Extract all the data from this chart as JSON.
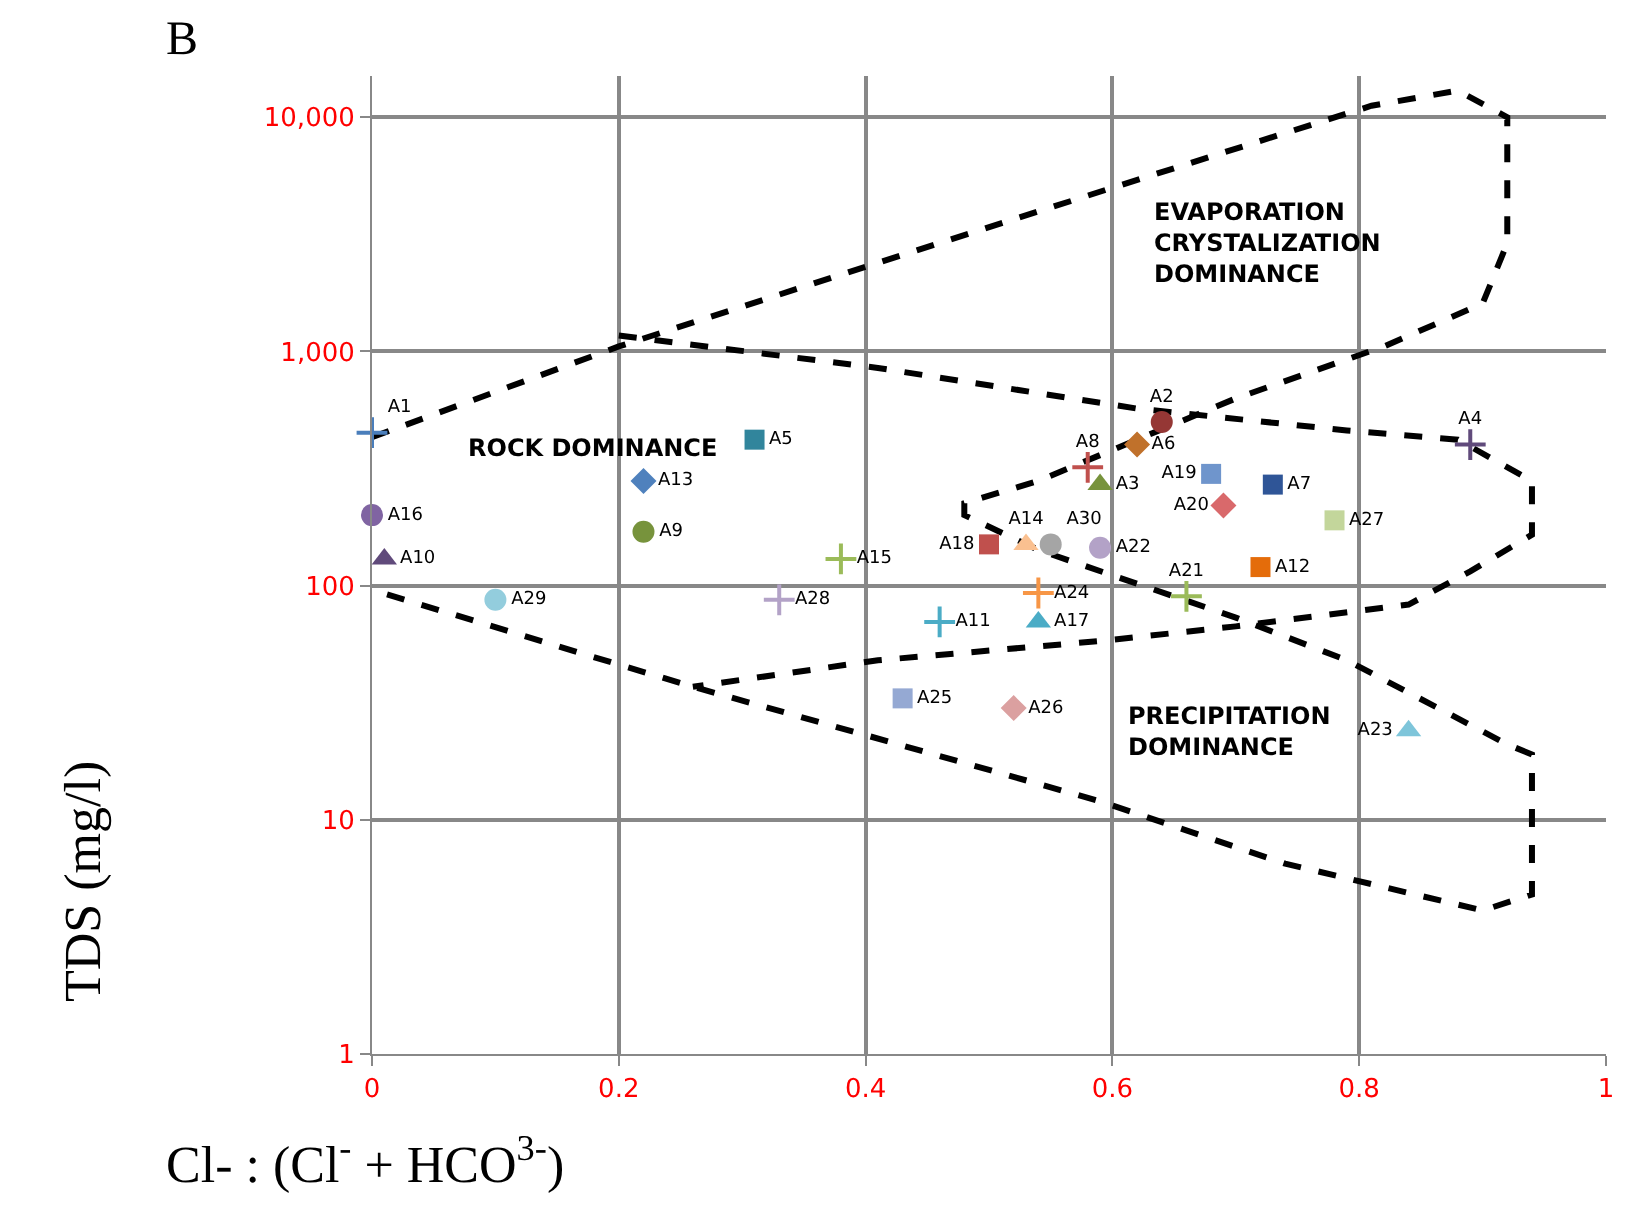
{
  "chart_data": {
    "type": "scatter",
    "title": "B",
    "xlabel": "Cl- : (Cl$^{-}$ + HCO$^{3-}$)",
    "ylabel": "TDS (mg/l)",
    "log": "y",
    "grid": true,
    "legend": false,
    "xlim": [
      0,
      1
    ],
    "xticks": [
      0,
      0.2,
      0.4,
      0.6,
      0.8,
      1
    ],
    "ylim": [
      1,
      15000
    ],
    "yticks": [
      1,
      10,
      100,
      {
        "value": 1000,
        "label": "1,000"
      },
      {
        "value": 10000,
        "label": "10,000"
      }
    ],
    "annotations": [
      "ROCK DOMINANCE",
      "EVAPORATION\nCRYSTALIZATION\nDOMINANCE",
      "PRECIPITATION\nDOMINANCE"
    ],
    "series": [
      {
        "type": "line",
        "line_style": "dashed",
        "marker": "none",
        "color": "#000000",
        "x": [
          0,
          0.2,
          0.4,
          0.6,
          0.81,
          0.88,
          0.92,
          0.92,
          0.9,
          0.82,
          0.7,
          0.54,
          0.48,
          0.48,
          0.54,
          0.7,
          0.79,
          0.92,
          0.94,
          0.94,
          0.94,
          0.9,
          0.74,
          0.59,
          0.4,
          0.26,
          0.2,
          0
        ],
        "values": [
          430,
          1050,
          2300,
          5000,
          11200,
          13000,
          10000,
          2900,
          1600,
          1050,
          630,
          280,
          225,
          200,
          142,
          73,
          48,
          21,
          19,
          8.4,
          4.8,
          4.1,
          6.5,
          12,
          23,
          37,
          46,
          96
        ]
      },
      {
        "type": "line",
        "line_style": "dashed",
        "marker": "none",
        "color": "#000000",
        "x": [
          0.2,
          0.41,
          0.62,
          0.79,
          0.88,
          0.94,
          0.94,
          0.89,
          0.84,
          0.7,
          0.59,
          0.41,
          0.26
        ],
        "values": [
          1170,
          850,
          570,
          460,
          420,
          280,
          165,
          115,
          83,
          67,
          58,
          48,
          37
        ]
      },
      {
        "name": "A1",
        "marker": "cross",
        "color": "#4a7ebb",
        "x": [
          0.0
        ],
        "values": [
          450
        ]
      },
      {
        "name": "A2",
        "marker": "circle",
        "color": "#953735",
        "x": [
          0.64
        ],
        "values": [
          500
        ]
      },
      {
        "name": "A3",
        "marker": "triangle",
        "color": "#77933c",
        "x": [
          0.59
        ],
        "values": [
          270
        ]
      },
      {
        "name": "A4",
        "marker": "cross",
        "color": "#604a7b",
        "x": [
          0.89
        ],
        "values": [
          400
        ]
      },
      {
        "name": "A5",
        "marker": "square",
        "color": "#31859c",
        "x": [
          0.31
        ],
        "values": [
          420
        ]
      },
      {
        "name": "A6",
        "marker": "diamond",
        "color": "#c0712b",
        "x": [
          0.62
        ],
        "values": [
          400
        ]
      },
      {
        "name": "A7",
        "marker": "square",
        "color": "#2f5597",
        "x": [
          0.73
        ],
        "values": [
          270
        ]
      },
      {
        "name": "A8",
        "marker": "cross",
        "color": "#c0504d",
        "x": [
          0.58
        ],
        "values": [
          320
        ]
      },
      {
        "name": "A9",
        "marker": "circle",
        "color": "#77933c",
        "x": [
          0.22
        ],
        "values": [
          170
        ]
      },
      {
        "name": "A10",
        "marker": "triangle",
        "color": "#604a7b",
        "x": [
          0.01
        ],
        "values": [
          130
        ]
      },
      {
        "name": "A11",
        "marker": "cross",
        "color": "#4bacc6",
        "x": [
          0.46
        ],
        "values": [
          70
        ]
      },
      {
        "name": "A12",
        "marker": "square",
        "color": "#e46c0a",
        "x": [
          0.72
        ],
        "values": [
          120
        ]
      },
      {
        "name": "A13",
        "marker": "diamond",
        "color": "#4f81bd",
        "x": [
          0.22
        ],
        "values": [
          280
        ]
      },
      {
        "name": "A14",
        "marker": "triangle",
        "color": "#fac090",
        "x": [
          0.53
        ],
        "values": [
          150
        ]
      },
      {
        "name": "A15",
        "marker": "cross",
        "color": "#9bbb59",
        "x": [
          0.38
        ],
        "values": [
          130
        ]
      },
      {
        "name": "A16",
        "marker": "circle",
        "color": "#8064a2",
        "x": [
          0.0
        ],
        "values": [
          200
        ]
      },
      {
        "name": "A17",
        "marker": "triangle",
        "color": "#4bacc6",
        "x": [
          0.54
        ],
        "values": [
          70
        ]
      },
      {
        "name": "A18",
        "marker": "square",
        "color": "#c0504d",
        "x": [
          0.5
        ],
        "values": [
          150
        ]
      },
      {
        "name": "A19",
        "marker": "square",
        "color": "#6f95cc",
        "x": [
          0.68
        ],
        "values": [
          300
        ]
      },
      {
        "name": "A20",
        "marker": "diamond",
        "color": "#d9696b",
        "x": [
          0.69
        ],
        "values": [
          220
        ]
      },
      {
        "name": "A21",
        "marker": "cross",
        "color": "#9bbb59",
        "x": [
          0.66
        ],
        "values": [
          90
        ]
      },
      {
        "name": "A22",
        "marker": "circle",
        "color": "#b3a2c7",
        "x": [
          0.59
        ],
        "values": [
          145
        ]
      },
      {
        "name": "A23",
        "marker": "triangle",
        "color": "#7ec5da",
        "x": [
          0.84
        ],
        "values": [
          24
        ]
      },
      {
        "name": "A24",
        "marker": "cross",
        "color": "#f79646",
        "x": [
          0.54
        ],
        "values": [
          93
        ]
      },
      {
        "name": "A25",
        "marker": "square",
        "color": "#95a9d3",
        "x": [
          0.43
        ],
        "values": [
          33
        ]
      },
      {
        "name": "A26",
        "marker": "diamond",
        "color": "#dba0a0",
        "x": [
          0.52
        ],
        "values": [
          30
        ]
      },
      {
        "name": "A27",
        "marker": "square",
        "color": "#c3d69b",
        "x": [
          0.78
        ],
        "values": [
          190
        ]
      },
      {
        "name": "A28",
        "marker": "cross",
        "color": "#b3a2c7",
        "x": [
          0.33
        ],
        "values": [
          87
        ]
      },
      {
        "name": "A29",
        "marker": "circle",
        "color": "#93cddd",
        "x": [
          0.1
        ],
        "values": [
          87
        ]
      },
      {
        "name": "A30",
        "marker": "circle",
        "color": "#a5a5a5",
        "x": [
          0.55
        ],
        "values": [
          150
        ]
      }
    ]
  }
}
